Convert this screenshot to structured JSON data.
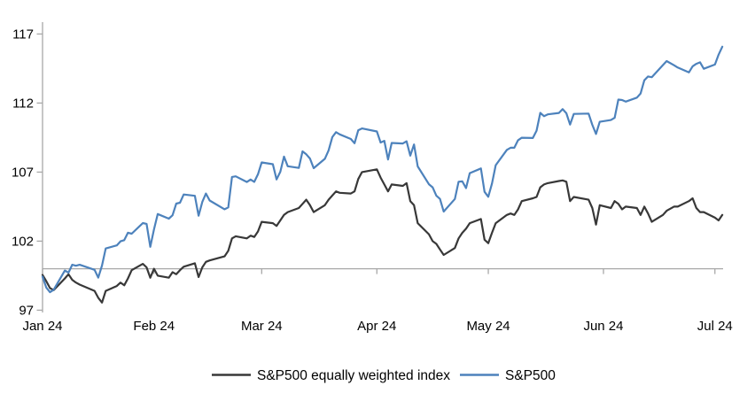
{
  "chart_data": {
    "type": "line",
    "title": "",
    "xlabel": "",
    "ylabel": "",
    "background_color": "#ffffff",
    "axis_color": "#a8a8a8",
    "text_color": "#000000",
    "grid": false,
    "baseline_value": 100,
    "legend_position": "bottom-center",
    "y_axis": {
      "ticks": [
        97,
        102,
        107,
        112,
        117
      ],
      "ylim": [
        97,
        117
      ]
    },
    "x_axis": {
      "unit": "days-since-2024-01-01",
      "xlim_days": [
        1,
        186
      ],
      "ticks": [
        {
          "day": 1,
          "label": "Jan 24"
        },
        {
          "day": 31,
          "label": "Feb 24"
        },
        {
          "day": 60,
          "label": "Mar 24"
        },
        {
          "day": 91,
          "label": "Apr 24"
        },
        {
          "day": 121,
          "label": "May 24"
        },
        {
          "day": 152,
          "label": "Jun 24"
        },
        {
          "day": 182,
          "label": "Jul 24"
        }
      ]
    },
    "series": [
      {
        "name": "S&P500 equally weighted index",
        "color": "#383838",
        "points": [
          [
            1,
            99.55
          ],
          [
            2,
            99.1
          ],
          [
            3,
            98.6
          ],
          [
            4,
            98.45
          ],
          [
            7,
            99.3
          ],
          [
            8,
            99.6
          ],
          [
            9,
            99.2
          ],
          [
            10,
            99.0
          ],
          [
            11,
            98.85
          ],
          [
            15,
            98.4
          ],
          [
            16,
            97.9
          ],
          [
            17,
            97.55
          ],
          [
            18,
            98.4
          ],
          [
            21,
            98.75
          ],
          [
            22,
            99.0
          ],
          [
            23,
            98.8
          ],
          [
            24,
            99.3
          ],
          [
            25,
            99.9
          ],
          [
            28,
            100.35
          ],
          [
            29,
            100.1
          ],
          [
            30,
            99.35
          ],
          [
            31,
            100.0
          ],
          [
            32,
            99.5
          ],
          [
            35,
            99.35
          ],
          [
            36,
            99.75
          ],
          [
            37,
            99.6
          ],
          [
            38,
            99.9
          ],
          [
            39,
            100.15
          ],
          [
            42,
            100.4
          ],
          [
            43,
            99.4
          ],
          [
            44,
            100.1
          ],
          [
            45,
            100.5
          ],
          [
            46,
            100.6
          ],
          [
            50,
            100.9
          ],
          [
            51,
            101.3
          ],
          [
            52,
            102.2
          ],
          [
            53,
            102.35
          ],
          [
            56,
            102.2
          ],
          [
            57,
            102.4
          ],
          [
            58,
            102.3
          ],
          [
            59,
            102.7
          ],
          [
            60,
            103.4
          ],
          [
            63,
            103.3
          ],
          [
            64,
            103.1
          ],
          [
            65,
            103.5
          ],
          [
            66,
            103.9
          ],
          [
            67,
            104.1
          ],
          [
            70,
            104.4
          ],
          [
            71,
            104.7
          ],
          [
            72,
            105.0
          ],
          [
            73,
            104.6
          ],
          [
            74,
            104.1
          ],
          [
            77,
            104.6
          ],
          [
            78,
            105.0
          ],
          [
            79,
            105.3
          ],
          [
            80,
            105.6
          ],
          [
            81,
            105.5
          ],
          [
            84,
            105.45
          ],
          [
            85,
            105.6
          ],
          [
            86,
            106.5
          ],
          [
            87,
            107.0
          ],
          [
            91,
            107.2
          ],
          [
            92,
            106.6
          ],
          [
            93,
            106.1
          ],
          [
            94,
            105.6
          ],
          [
            95,
            106.1
          ],
          [
            98,
            106.0
          ],
          [
            99,
            106.2
          ],
          [
            100,
            104.9
          ],
          [
            101,
            104.6
          ],
          [
            102,
            103.3
          ],
          [
            105,
            102.5
          ],
          [
            106,
            102.0
          ],
          [
            107,
            101.8
          ],
          [
            108,
            101.4
          ],
          [
            109,
            101.0
          ],
          [
            112,
            101.5
          ],
          [
            113,
            102.2
          ],
          [
            114,
            102.6
          ],
          [
            115,
            102.9
          ],
          [
            116,
            103.3
          ],
          [
            119,
            103.6
          ],
          [
            120,
            102.1
          ],
          [
            121,
            101.85
          ],
          [
            122,
            102.6
          ],
          [
            123,
            103.3
          ],
          [
            126,
            103.9
          ],
          [
            127,
            104.0
          ],
          [
            128,
            103.9
          ],
          [
            129,
            104.3
          ],
          [
            130,
            104.9
          ],
          [
            133,
            105.1
          ],
          [
            134,
            105.2
          ],
          [
            135,
            105.9
          ],
          [
            136,
            106.1
          ],
          [
            137,
            106.2
          ],
          [
            140,
            106.35
          ],
          [
            141,
            106.4
          ],
          [
            142,
            106.3
          ],
          [
            143,
            104.9
          ],
          [
            144,
            105.2
          ],
          [
            148,
            105.0
          ],
          [
            149,
            104.4
          ],
          [
            150,
            103.2
          ],
          [
            151,
            104.6
          ],
          [
            154,
            104.4
          ],
          [
            155,
            104.9
          ],
          [
            156,
            104.7
          ],
          [
            157,
            104.3
          ],
          [
            158,
            104.5
          ],
          [
            161,
            104.4
          ],
          [
            162,
            103.9
          ],
          [
            163,
            104.5
          ],
          [
            164,
            104.0
          ],
          [
            165,
            103.4
          ],
          [
            168,
            103.9
          ],
          [
            169,
            104.2
          ],
          [
            171,
            104.5
          ],
          [
            172,
            104.5
          ],
          [
            175,
            104.9
          ],
          [
            176,
            105.1
          ],
          [
            177,
            104.4
          ],
          [
            178,
            104.1
          ],
          [
            179,
            104.1
          ],
          [
            182,
            103.7
          ],
          [
            183,
            103.5
          ],
          [
            184,
            103.9
          ]
        ]
      },
      {
        "name": "S&P500",
        "color": "#4d82bc",
        "points": [
          [
            1,
            99.43
          ],
          [
            2,
            98.64
          ],
          [
            3,
            98.3
          ],
          [
            4,
            98.48
          ],
          [
            7,
            99.87
          ],
          [
            8,
            99.72
          ],
          [
            9,
            100.29
          ],
          [
            10,
            100.22
          ],
          [
            11,
            100.29
          ],
          [
            15,
            99.92
          ],
          [
            16,
            99.36
          ],
          [
            17,
            100.23
          ],
          [
            18,
            101.47
          ],
          [
            21,
            101.69
          ],
          [
            22,
            101.99
          ],
          [
            23,
            102.07
          ],
          [
            24,
            102.61
          ],
          [
            25,
            102.54
          ],
          [
            28,
            103.31
          ],
          [
            29,
            103.25
          ],
          [
            30,
            101.59
          ],
          [
            31,
            102.86
          ],
          [
            32,
            103.96
          ],
          [
            35,
            103.63
          ],
          [
            36,
            103.87
          ],
          [
            37,
            104.72
          ],
          [
            38,
            104.78
          ],
          [
            39,
            105.38
          ],
          [
            42,
            105.28
          ],
          [
            43,
            103.84
          ],
          [
            44,
            104.84
          ],
          [
            45,
            105.45
          ],
          [
            46,
            104.94
          ],
          [
            50,
            104.31
          ],
          [
            51,
            104.44
          ],
          [
            52,
            106.65
          ],
          [
            53,
            106.69
          ],
          [
            56,
            106.28
          ],
          [
            57,
            106.46
          ],
          [
            58,
            106.29
          ],
          [
            59,
            106.84
          ],
          [
            60,
            107.7
          ],
          [
            63,
            107.57
          ],
          [
            64,
            106.47
          ],
          [
            65,
            107.02
          ],
          [
            66,
            108.12
          ],
          [
            67,
            107.42
          ],
          [
            70,
            107.3
          ],
          [
            71,
            108.5
          ],
          [
            72,
            108.29
          ],
          [
            73,
            107.98
          ],
          [
            74,
            107.28
          ],
          [
            77,
            107.96
          ],
          [
            78,
            108.57
          ],
          [
            79,
            109.53
          ],
          [
            80,
            109.89
          ],
          [
            81,
            109.73
          ],
          [
            84,
            109.4
          ],
          [
            85,
            109.09
          ],
          [
            86,
            110.03
          ],
          [
            87,
            110.16
          ],
          [
            91,
            109.94
          ],
          [
            92,
            109.14
          ],
          [
            93,
            109.26
          ],
          [
            94,
            107.91
          ],
          [
            95,
            109.11
          ],
          [
            98,
            109.07
          ],
          [
            99,
            109.23
          ],
          [
            100,
            108.19
          ],
          [
            101,
            109.0
          ],
          [
            102,
            107.41
          ],
          [
            105,
            106.12
          ],
          [
            106,
            105.9
          ],
          [
            107,
            105.29
          ],
          [
            108,
            105.06
          ],
          [
            109,
            104.14
          ],
          [
            112,
            105.05
          ],
          [
            113,
            106.3
          ],
          [
            114,
            106.33
          ],
          [
            115,
            105.84
          ],
          [
            116,
            106.92
          ],
          [
            119,
            107.26
          ],
          [
            120,
            105.57
          ],
          [
            121,
            105.21
          ],
          [
            122,
            106.17
          ],
          [
            123,
            107.5
          ],
          [
            126,
            108.61
          ],
          [
            127,
            108.76
          ],
          [
            128,
            108.76
          ],
          [
            129,
            109.31
          ],
          [
            130,
            109.49
          ],
          [
            133,
            109.47
          ],
          [
            134,
            110.0
          ],
          [
            135,
            111.29
          ],
          [
            136,
            111.05
          ],
          [
            137,
            111.18
          ],
          [
            140,
            111.28
          ],
          [
            141,
            111.56
          ],
          [
            142,
            111.26
          ],
          [
            143,
            110.44
          ],
          [
            144,
            111.21
          ],
          [
            148,
            111.24
          ],
          [
            149,
            110.42
          ],
          [
            150,
            109.76
          ],
          [
            151,
            110.64
          ],
          [
            154,
            110.77
          ],
          [
            155,
            110.93
          ],
          [
            156,
            112.25
          ],
          [
            157,
            112.22
          ],
          [
            158,
            112.1
          ],
          [
            161,
            112.39
          ],
          [
            162,
            112.69
          ],
          [
            163,
            113.65
          ],
          [
            164,
            113.92
          ],
          [
            165,
            113.87
          ],
          [
            168,
            114.75
          ],
          [
            169,
            115.04
          ],
          [
            171,
            114.74
          ],
          [
            172,
            114.57
          ],
          [
            175,
            114.22
          ],
          [
            176,
            114.66
          ],
          [
            177,
            114.84
          ],
          [
            178,
            114.95
          ],
          [
            179,
            114.48
          ],
          [
            182,
            114.79
          ],
          [
            183,
            115.5
          ],
          [
            184,
            116.08
          ]
        ]
      }
    ],
    "legend": [
      {
        "label": "S&P500 equally weighted index",
        "color": "#383838"
      },
      {
        "label": "S&P500",
        "color": "#4d82bc"
      }
    ]
  }
}
